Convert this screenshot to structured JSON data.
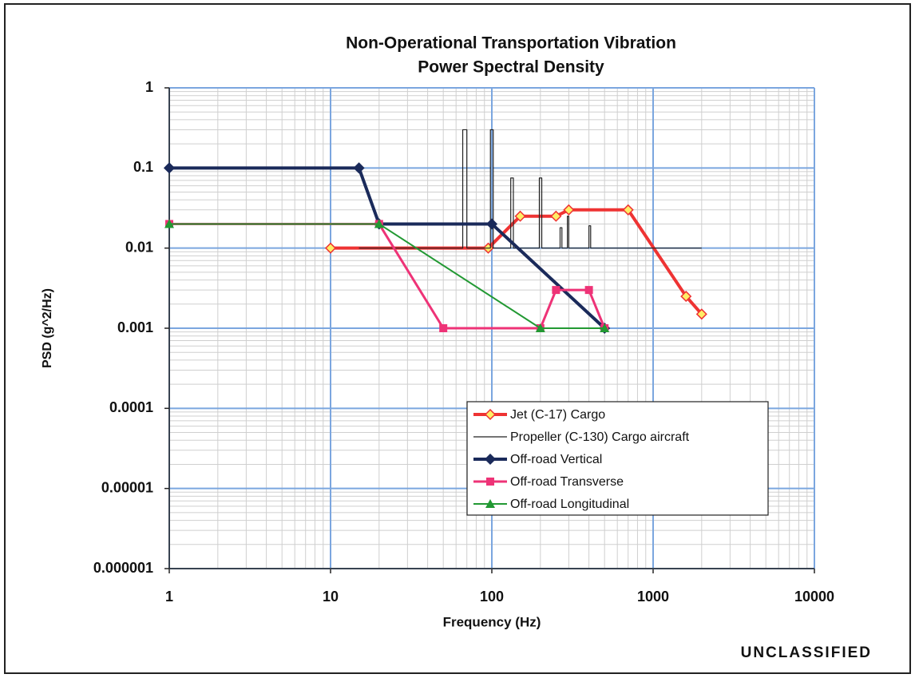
{
  "chart_data": {
    "type": "line",
    "title": "Non-Operational Transportation Vibration",
    "subtitle": "Power Spectral Density",
    "x_label": "Frequency (Hz)",
    "y_label": "PSD (g^2/Hz)",
    "footer": "UNCLASSIFIED",
    "xlog": true,
    "ylog": true,
    "grid": true,
    "minor_grid": true,
    "legend": "lower right",
    "xlim": [
      1,
      10000
    ],
    "xticks": [
      1,
      10,
      100,
      1000,
      10000
    ],
    "ylim": [
      {
        "value": 1e-06,
        "label": "0.000001"
      },
      1
    ],
    "yticks": [
      {
        "value": 1e-06,
        "label": "0.000001"
      },
      {
        "value": 1e-05,
        "label": "0.00001"
      },
      0.0001,
      0.001,
      0.01,
      0.1,
      1
    ],
    "series": [
      {
        "name": "Jet (C-17) Cargo",
        "color": "#ee3333",
        "marker": "diamond",
        "marker_fill": "#ffee66",
        "width": 4,
        "x": [
          10,
          95,
          150,
          250,
          300,
          700,
          1600,
          2000
        ],
        "values": [
          0.01,
          0.01,
          0.025,
          0.025,
          0.03,
          0.03,
          0.0025,
          0.0015
        ]
      },
      {
        "name": "Propeller (C-130) Cargo aircraft",
        "color": "#222222",
        "marker": "none",
        "width": 1.2,
        "x": [
          15,
          66,
          66,
          70,
          70,
          98,
          98,
          102,
          102,
          131,
          131,
          136,
          136,
          197,
          197,
          204,
          204,
          265,
          265,
          272,
          272,
          294,
          294,
          300,
          300,
          400,
          400,
          410,
          410,
          2000
        ],
        "values": [
          0.01,
          0.01,
          0.3,
          0.3,
          0.01,
          0.01,
          0.3,
          0.3,
          0.01,
          0.01,
          0.075,
          0.075,
          0.01,
          0.01,
          0.075,
          0.075,
          0.01,
          0.01,
          0.018,
          0.018,
          0.01,
          0.01,
          0.025,
          0.025,
          0.01,
          0.01,
          0.019,
          0.019,
          0.01,
          0.01
        ]
      },
      {
        "name": "Off-road Vertical",
        "color": "#1a2a5a",
        "marker": "diamond",
        "marker_fill": "#1a2a5a",
        "width": 4,
        "x": [
          1,
          15,
          20,
          100,
          500
        ],
        "values": [
          0.1,
          0.1,
          0.02,
          0.02,
          0.001
        ]
      },
      {
        "name": "Off-road Transverse",
        "color": "#ee3377",
        "marker": "square",
        "marker_fill": "#ee3377",
        "width": 3,
        "x": [
          1,
          20,
          50,
          200,
          250,
          400,
          500
        ],
        "values": [
          0.02,
          0.02,
          0.001,
          0.001,
          0.003,
          0.003,
          0.001
        ]
      },
      {
        "name": "Off-road Longitudinal",
        "color": "#229933",
        "marker": "triangle",
        "marker_fill": "#229933",
        "width": 2,
        "x": [
          1,
          20,
          200,
          500
        ],
        "values": [
          0.02,
          0.02,
          0.001,
          0.001
        ]
      }
    ]
  }
}
